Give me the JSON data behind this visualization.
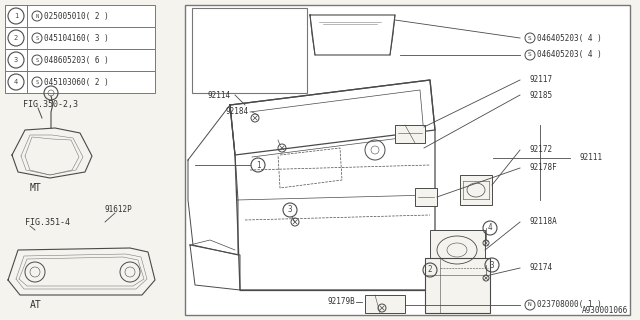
{
  "bg_color": "#f5f3ee",
  "line_color": "#4a4a4a",
  "text_color": "#333333",
  "border_color": "#777777",
  "footer_text": "A930001066",
  "parts_list": [
    {
      "num": "1",
      "prefix": "N",
      "code": "025005010( 2 )"
    },
    {
      "num": "2",
      "prefix": "S",
      "code": "045104160( 3 )"
    },
    {
      "num": "3",
      "prefix": "S",
      "code": "048605203( 6 )"
    },
    {
      "num": "4",
      "prefix": "S",
      "code": "045103060( 2 )"
    }
  ]
}
